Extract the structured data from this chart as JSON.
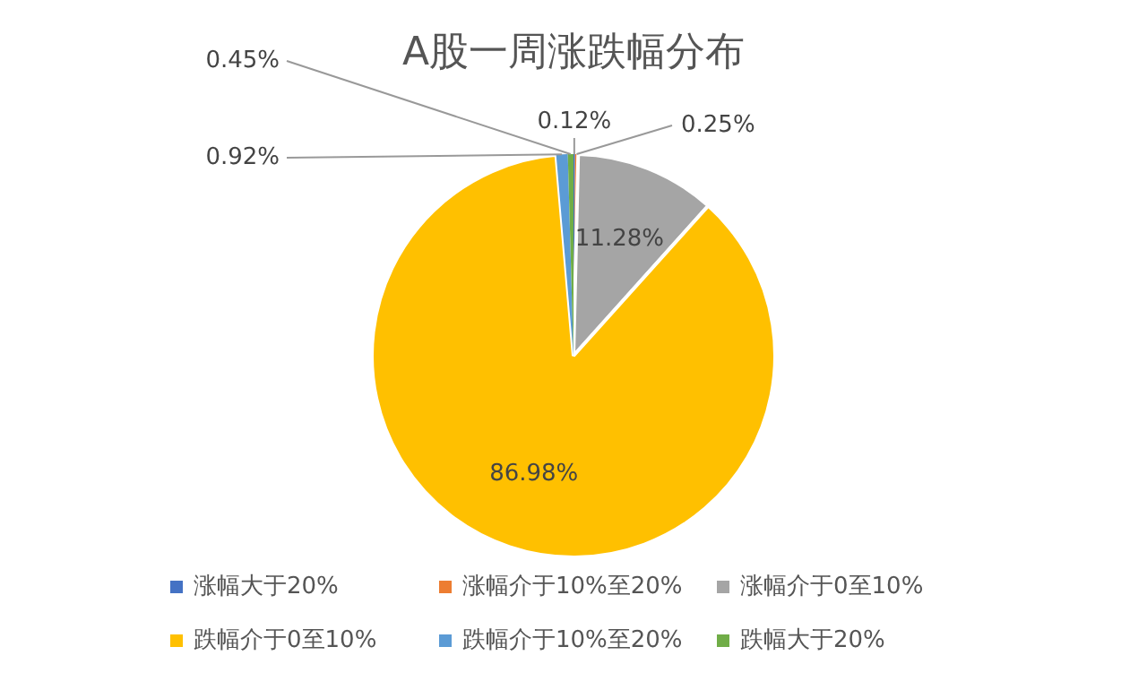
{
  "chart_data": {
    "type": "pie",
    "title": "A股一周涨跌幅分布",
    "categories": [
      "涨幅大于20%",
      "涨幅介于10%至20%",
      "涨幅介于0至10%",
      "跌幅介于0至10%",
      "跌幅介于10%至20%",
      "跌幅大于20%"
    ],
    "values": [
      0.12,
      0.25,
      11.28,
      86.98,
      0.92,
      0.45
    ],
    "colors": [
      "#4472c4",
      "#ed7d31",
      "#a5a5a5",
      "#ffc000",
      "#5b9bd5",
      "#70ad47"
    ],
    "value_labels": [
      "0.12%",
      "0.25%",
      "11.28%",
      "86.98%",
      "0.92%",
      "0.45%"
    ],
    "legend": "bottom"
  }
}
